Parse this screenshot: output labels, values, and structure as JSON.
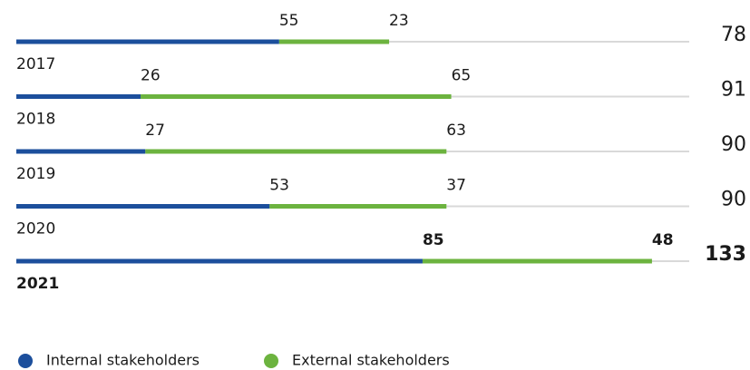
{
  "chart_data": {
    "type": "stacked-bar-horizontal",
    "categories": [
      "2017",
      "2018",
      "2019",
      "2020",
      "2021"
    ],
    "series": [
      {
        "name": "Internal stakeholders",
        "color": "#1c4f9c",
        "values": [
          55,
          26,
          27,
          53,
          85
        ]
      },
      {
        "name": "External stakeholders",
        "color": "#6cb33f",
        "values": [
          23,
          65,
          63,
          37,
          48
        ]
      }
    ],
    "totals": [
      78,
      91,
      90,
      90,
      133
    ]
  }
}
